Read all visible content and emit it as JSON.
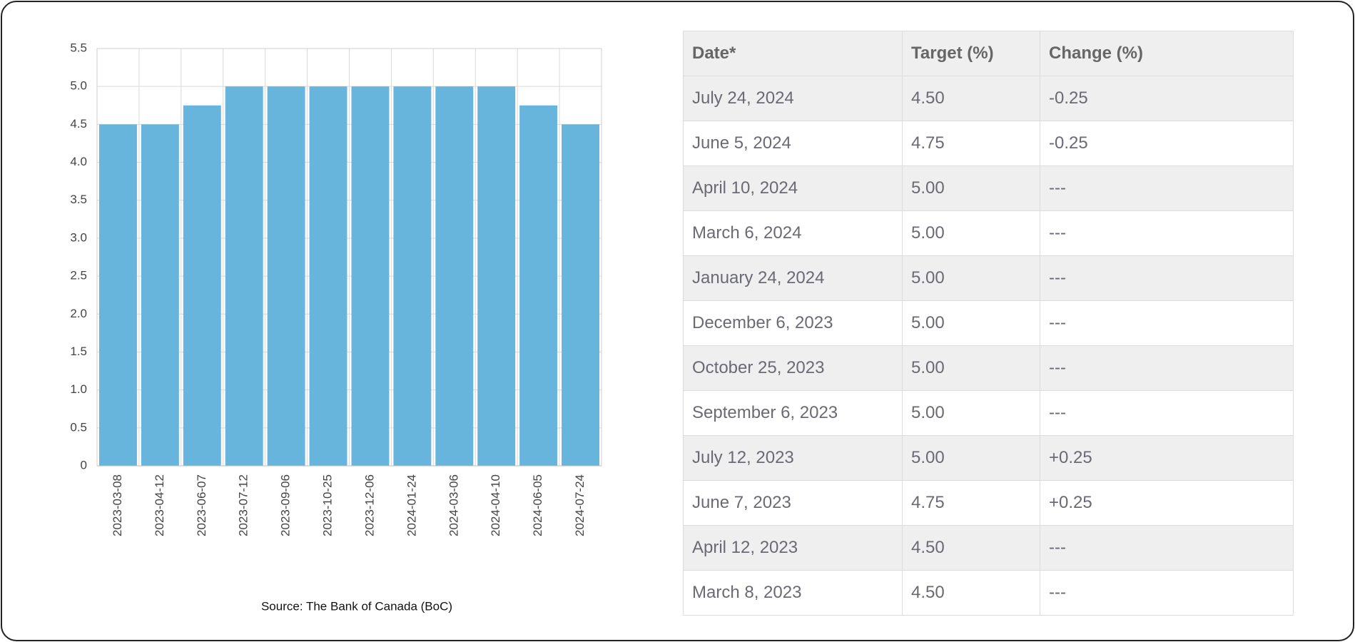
{
  "chart_data": {
    "type": "bar",
    "categories": [
      "2023-03-08",
      "2023-04-12",
      "2023-06-07",
      "2023-07-12",
      "2023-09-06",
      "2023-10-25",
      "2023-12-06",
      "2024-01-24",
      "2024-03-06",
      "2024-04-10",
      "2024-06-05",
      "2024-07-24"
    ],
    "values": [
      4.5,
      4.5,
      4.75,
      5,
      5,
      5,
      5,
      5,
      5,
      5,
      4.75,
      4.5
    ],
    "color": "#67b5dc",
    "ylim": [
      0,
      5.5
    ],
    "yticks": [
      0,
      0.5,
      {
        "value": 1,
        "label": "1.0"
      },
      1.5,
      {
        "value": 2,
        "label": "2.0"
      },
      2.5,
      {
        "value": 3,
        "label": "3.0"
      },
      3.5,
      {
        "value": 4,
        "label": "4.0"
      },
      4.5,
      {
        "value": 5,
        "label": "5.0"
      },
      5.5
    ],
    "grid": true,
    "source": "Source: The Bank of Canada (BoC)"
  },
  "table": {
    "header": [
      "Date*",
      "Target (%)",
      "Change (%)"
    ],
    "rows": [
      [
        "July 24, 2024",
        "4.50",
        "-0.25"
      ],
      [
        "June 5, 2024",
        "4.75",
        "-0.25"
      ],
      [
        "April 10, 2024",
        "5.00",
        "---"
      ],
      [
        "March 6, 2024",
        "5.00",
        "---"
      ],
      [
        "January 24, 2024",
        "5.00",
        "---"
      ],
      [
        "December 6, 2023",
        "5.00",
        "---"
      ],
      [
        "October 25, 2023",
        "5.00",
        "---"
      ],
      [
        "September 6, 2023",
        "5.00",
        "---"
      ],
      [
        "July 12, 2023",
        "5.00",
        "+0.25"
      ],
      [
        "June 7, 2023",
        "4.75",
        "+0.25"
      ],
      [
        "April 12, 2023",
        "4.50",
        "---"
      ],
      [
        "March 8, 2023",
        "4.50",
        "---"
      ]
    ]
  }
}
